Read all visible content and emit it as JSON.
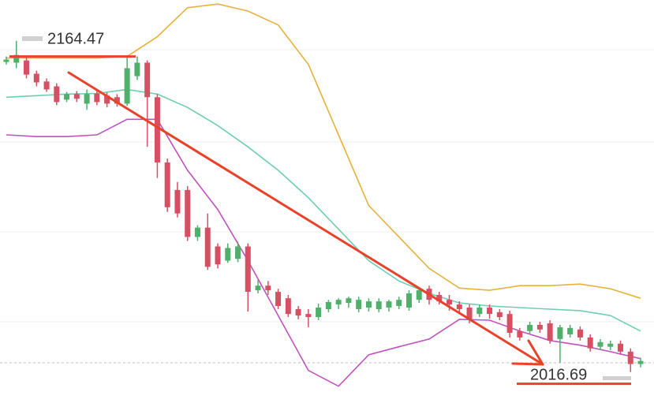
{
  "chart_data": {
    "type": "candlestick",
    "ylim": [
      2008,
      2190
    ],
    "up_color": "#4fb06c",
    "down_color": "#d65064",
    "ohlc": [
      [
        2162.0,
        2164.5,
        2160.9,
        2163.1
      ],
      [
        2161.7,
        2171.6,
        2159.2,
        2165.2
      ],
      [
        2162.7,
        2164.5,
        2154.6,
        2156.3
      ],
      [
        2156.7,
        2158.1,
        2151.0,
        2152.8
      ],
      [
        2153.2,
        2154.6,
        2148.5,
        2149.6
      ],
      [
        2151.0,
        2152.4,
        2142.5,
        2143.9
      ],
      [
        2145.0,
        2148.5,
        2143.9,
        2147.5
      ],
      [
        2147.5,
        2148.9,
        2143.9,
        2145.4
      ],
      [
        2143.2,
        2149.6,
        2140.4,
        2147.5
      ],
      [
        2147.8,
        2149.3,
        2142.5,
        2143.9
      ],
      [
        2146.8,
        2148.2,
        2141.5,
        2143.2
      ],
      [
        2146.1,
        2147.5,
        2141.8,
        2143.2
      ],
      [
        2143.2,
        2164.5,
        2142.2,
        2159.2
      ],
      [
        2155.6,
        2164.5,
        2153.9,
        2161.7
      ],
      [
        2161.7,
        2162.7,
        2123.7,
        2146.1
      ],
      [
        2146.1,
        2147.5,
        2109.6,
        2116.6
      ],
      [
        2116.6,
        2118.4,
        2094.3,
        2096.4
      ],
      [
        2104.2,
        2107.8,
        2091.8,
        2093.6
      ],
      [
        2104.2,
        2106.0,
        2081.2,
        2083.0
      ],
      [
        2083.0,
        2088.3,
        2081.2,
        2087.2
      ],
      [
        2087.2,
        2093.6,
        2068.1,
        2069.5
      ],
      [
        2078.7,
        2080.1,
        2068.8,
        2070.6
      ],
      [
        2072.3,
        2080.1,
        2071.3,
        2078.0
      ],
      [
        2073.1,
        2080.9,
        2071.6,
        2078.7
      ],
      [
        2078.7,
        2080.1,
        2049.3,
        2058.2
      ],
      [
        2058.9,
        2063.5,
        2057.5,
        2061.0
      ],
      [
        2061.0,
        2063.1,
        2056.8,
        2058.9
      ],
      [
        2058.2,
        2059.6,
        2050.4,
        2051.8
      ],
      [
        2055.3,
        2056.8,
        2046.8,
        2048.2
      ],
      [
        2050.4,
        2051.8,
        2045.8,
        2047.5
      ],
      [
        2048.2,
        2050.4,
        2042.2,
        2046.8
      ],
      [
        2046.8,
        2052.9,
        2045.4,
        2051.1
      ],
      [
        2050.4,
        2054.6,
        2049.0,
        2053.6
      ],
      [
        2052.5,
        2055.3,
        2050.4,
        2054.6
      ],
      [
        2053.2,
        2056.0,
        2051.1,
        2055.3
      ],
      [
        2050.4,
        2056.0,
        2049.0,
        2054.6
      ],
      [
        2051.1,
        2055.3,
        2049.3,
        2053.9
      ],
      [
        2050.4,
        2055.3,
        2049.0,
        2053.9
      ],
      [
        2051.1,
        2054.6,
        2049.3,
        2053.9
      ],
      [
        2051.8,
        2056.0,
        2050.4,
        2054.6
      ],
      [
        2051.1,
        2058.9,
        2049.7,
        2057.5
      ],
      [
        2054.6,
        2059.9,
        2053.2,
        2058.9
      ],
      [
        2059.6,
        2061.0,
        2052.5,
        2054.6
      ],
      [
        2056.8,
        2058.2,
        2052.5,
        2053.9
      ],
      [
        2054.6,
        2056.8,
        2049.7,
        2052.5
      ],
      [
        2052.5,
        2053.9,
        2049.0,
        2050.4
      ],
      [
        2051.1,
        2052.5,
        2044.0,
        2045.8
      ],
      [
        2048.2,
        2052.5,
        2046.8,
        2051.1
      ],
      [
        2051.1,
        2052.5,
        2046.1,
        2048.2
      ],
      [
        2049.0,
        2050.4,
        2045.4,
        2046.8
      ],
      [
        2048.2,
        2049.7,
        2037.6,
        2039.7
      ],
      [
        2040.5,
        2041.9,
        2036.2,
        2037.6
      ],
      [
        2040.5,
        2044.7,
        2039.0,
        2043.3
      ],
      [
        2043.3,
        2044.7,
        2039.7,
        2041.2
      ],
      [
        2044.0,
        2045.4,
        2034.8,
        2036.2
      ],
      [
        2036.9,
        2043.3,
        2026.3,
        2042.2
      ],
      [
        2039.0,
        2043.3,
        2037.6,
        2041.9
      ],
      [
        2041.2,
        2042.6,
        2036.2,
        2037.6
      ],
      [
        2037.6,
        2039.0,
        2031.2,
        2032.7
      ],
      [
        2033.4,
        2036.9,
        2031.9,
        2035.5
      ],
      [
        2033.4,
        2036.2,
        2031.9,
        2034.8
      ],
      [
        2034.8,
        2036.2,
        2029.8,
        2031.2
      ],
      [
        2031.2,
        2032.7,
        2022.0,
        2025.6
      ],
      [
        2025.6,
        2028.4,
        2024.1,
        2027.0
      ]
    ],
    "bands": [
      {
        "color": "#e6b23c",
        "x": [
          0,
          3,
          6,
          9,
          12,
          15,
          18,
          21,
          24,
          27,
          30,
          33,
          36,
          39,
          42,
          45,
          48,
          51,
          54,
          57,
          60,
          63
        ],
        "values": [
          2163.8,
          2163.8,
          2163.8,
          2163.8,
          2164.5,
          2173.4,
          2186.5,
          2188.2,
          2185.0,
          2178.7,
          2160.9,
          2129.1,
          2097.2,
          2083.0,
          2068.8,
          2059.9,
          2058.9,
          2061.0,
          2061.0,
          2061.7,
          2059.6,
          2055.3
        ]
      },
      {
        "color": "#6fcdb0",
        "x": [
          0,
          3,
          6,
          9,
          12,
          15,
          18,
          21,
          24,
          27,
          30,
          33,
          36,
          39,
          42,
          45,
          48,
          51,
          54,
          57,
          60,
          63
        ],
        "values": [
          2146.1,
          2146.8,
          2147.5,
          2147.8,
          2149.6,
          2147.5,
          2141.5,
          2133.3,
          2123.7,
          2113.1,
          2100.7,
          2086.5,
          2072.3,
          2063.1,
          2057.5,
          2053.2,
          2051.8,
          2051.1,
          2050.4,
          2049.7,
          2047.5,
          2040.5
        ]
      },
      {
        "color": "#c052c0",
        "x": [
          0,
          3,
          6,
          9,
          12,
          15,
          18,
          21,
          24,
          27,
          30,
          33,
          36,
          39,
          42,
          45,
          48,
          51,
          54,
          57,
          60,
          63
        ],
        "values": [
          2129.1,
          2128.3,
          2128.3,
          2129.1,
          2136.1,
          2136.1,
          2113.1,
          2095.4,
          2072.3,
          2047.5,
          2022.7,
          2015.6,
          2029.8,
          2033.4,
          2036.9,
          2045.8,
          2045.4,
          2040.5,
          2036.2,
          2034.1,
          2031.2,
          2028.0
        ]
      }
    ],
    "annotations": [
      2164.47,
      2016.69
    ],
    "annotation_color": "#e8432a"
  }
}
